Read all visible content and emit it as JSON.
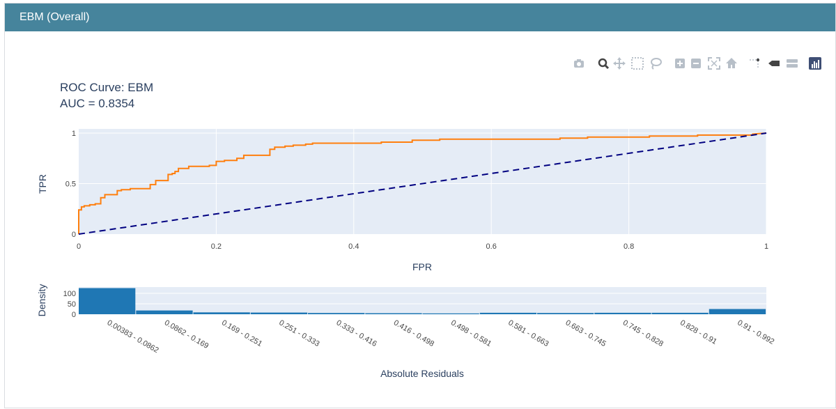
{
  "panel": {
    "title": "EBM (Overall)"
  },
  "modebar": {
    "buttons": [
      {
        "name": "camera-icon"
      },
      {
        "name": "zoom-icon"
      },
      {
        "name": "pan-icon"
      },
      {
        "name": "box-select-icon"
      },
      {
        "name": "lasso-select-icon"
      },
      {
        "name": "zoom-in-icon"
      },
      {
        "name": "zoom-out-icon"
      },
      {
        "name": "autoscale-icon"
      },
      {
        "name": "home-icon"
      },
      {
        "name": "spike-lines-icon"
      },
      {
        "name": "hover-closest-icon"
      },
      {
        "name": "hover-compare-icon"
      },
      {
        "name": "plotly-logo-icon"
      }
    ]
  },
  "chart_data": [
    {
      "type": "line",
      "title_line1": "ROC Curve: EBM",
      "title_line2": "AUC = 0.8354",
      "xlabel": "FPR",
      "ylabel": "TPR",
      "xlim": [
        0,
        1
      ],
      "ylim": [
        0,
        1
      ],
      "xticks": [
        "0",
        "0.2",
        "0.4",
        "0.6",
        "0.8",
        "1"
      ],
      "yticks": [
        "0",
        "0.5",
        "1"
      ],
      "grid": true,
      "series": [
        {
          "color": "#ff7f0e",
          "x": [
            0,
            0,
            0.004,
            0.004,
            0.008,
            0.008,
            0.016,
            0.016,
            0.024,
            0.024,
            0.032,
            0.032,
            0.038,
            0.038,
            0.056,
            0.056,
            0.062,
            0.062,
            0.075,
            0.075,
            0.104,
            0.104,
            0.112,
            0.112,
            0.13,
            0.13,
            0.136,
            0.136,
            0.14,
            0.14,
            0.145,
            0.145,
            0.16,
            0.16,
            0.19,
            0.19,
            0.2,
            0.2,
            0.212,
            0.212,
            0.23,
            0.23,
            0.24,
            0.24,
            0.278,
            0.278,
            0.285,
            0.285,
            0.3,
            0.3,
            0.312,
            0.312,
            0.33,
            0.33,
            0.34,
            0.34,
            0.44,
            0.44,
            0.485,
            0.485,
            0.525,
            0.525,
            0.7,
            0.7,
            0.74,
            0.74,
            0.83,
            0.83,
            0.9,
            0.9,
            0.98,
            0.98,
            1
          ],
          "y": [
            0,
            0.24,
            0.24,
            0.27,
            0.27,
            0.28,
            0.28,
            0.29,
            0.29,
            0.3,
            0.3,
            0.36,
            0.36,
            0.39,
            0.39,
            0.43,
            0.43,
            0.44,
            0.44,
            0.45,
            0.45,
            0.49,
            0.49,
            0.53,
            0.53,
            0.59,
            0.59,
            0.6,
            0.6,
            0.62,
            0.62,
            0.65,
            0.65,
            0.67,
            0.67,
            0.68,
            0.68,
            0.72,
            0.72,
            0.73,
            0.73,
            0.75,
            0.75,
            0.78,
            0.78,
            0.84,
            0.84,
            0.86,
            0.86,
            0.87,
            0.87,
            0.88,
            0.88,
            0.89,
            0.89,
            0.9,
            0.9,
            0.91,
            0.91,
            0.93,
            0.93,
            0.94,
            0.94,
            0.95,
            0.95,
            0.96,
            0.96,
            0.97,
            0.97,
            0.98,
            0.98,
            0.99,
            1
          ]
        },
        {
          "color": "#000080",
          "dash": true,
          "x": [
            0,
            1
          ],
          "y": [
            0,
            1
          ]
        }
      ]
    },
    {
      "type": "bar",
      "xlabel": "Absolute Residuals",
      "ylabel": "Density",
      "ylim": [
        0,
        130
      ],
      "yticks": [
        "0",
        "50",
        "100"
      ],
      "color": "#1f77b4",
      "categories": [
        "0.00383 - 0.0862",
        "0.0862 - 0.169",
        "0.169 - 0.251",
        "0.251 - 0.333",
        "0.333 - 0.416",
        "0.416 - 0.498",
        "0.498 - 0.581",
        "0.581 - 0.663",
        "0.663 - 0.745",
        "0.745 - 0.828",
        "0.828 - 0.91",
        "0.91 - 0.992"
      ],
      "values": [
        125,
        18,
        9,
        8,
        6,
        5,
        4,
        7,
        6,
        7,
        7,
        25
      ]
    }
  ]
}
